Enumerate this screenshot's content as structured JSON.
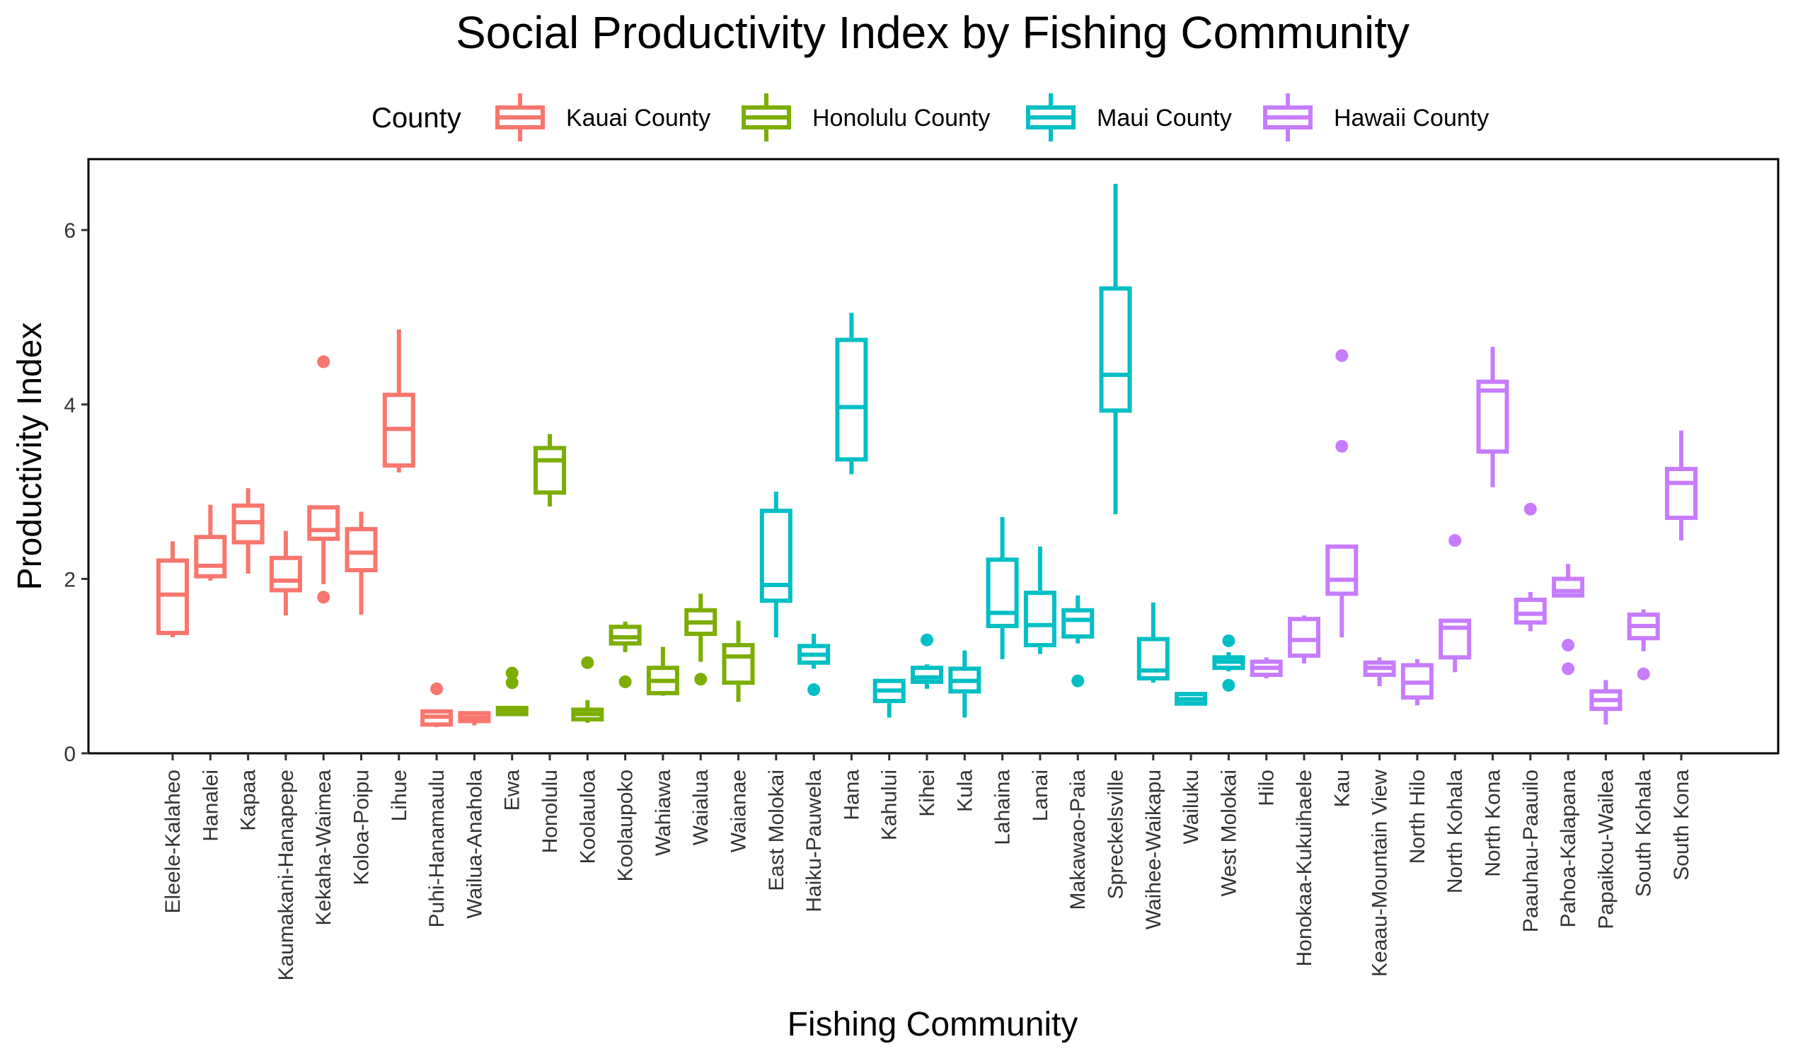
{
  "chart_data": {
    "type": "boxplot",
    "title": "Social Productivity Index by Fishing Community",
    "xlabel": "Fishing Community",
    "ylabel": "Productivity Index",
    "ylim": [
      0,
      6.8
    ],
    "yticks": [
      0,
      2,
      4,
      6
    ],
    "legend": {
      "title": "County",
      "placement": "top",
      "entries": [
        {
          "name": "Kauai County",
          "color": "#F8766D"
        },
        {
          "name": "Honolulu County",
          "color": "#7CAE00"
        },
        {
          "name": "Maui County",
          "color": "#00BFC4"
        },
        {
          "name": "Hawaii County",
          "color": "#C77CFF"
        }
      ]
    },
    "categories": [
      {
        "name": "Eleele-Kalaheo",
        "county": "Kauai County",
        "min": 1.33,
        "q1": 1.38,
        "median": 1.82,
        "q3": 2.21,
        "max": 2.43,
        "outliers": []
      },
      {
        "name": "Hanalei",
        "county": "Kauai County",
        "min": 1.98,
        "q1": 2.03,
        "median": 2.15,
        "q3": 2.48,
        "max": 2.85,
        "outliers": []
      },
      {
        "name": "Kapaa",
        "county": "Kauai County",
        "min": 2.06,
        "q1": 2.42,
        "median": 2.65,
        "q3": 2.84,
        "max": 3.04,
        "outliers": []
      },
      {
        "name": "Kaumakani-Hanapepe",
        "county": "Kauai County",
        "min": 1.58,
        "q1": 1.87,
        "median": 1.98,
        "q3": 2.24,
        "max": 2.55,
        "outliers": []
      },
      {
        "name": "Kekaha-Waimea",
        "county": "Kauai County",
        "min": 1.94,
        "q1": 2.46,
        "median": 2.56,
        "q3": 2.82,
        "max": 2.82,
        "outliers": [
          1.79,
          4.49
        ]
      },
      {
        "name": "Koloa-Poipu",
        "county": "Kauai County",
        "min": 1.59,
        "q1": 2.1,
        "median": 2.3,
        "q3": 2.57,
        "max": 2.77,
        "outliers": []
      },
      {
        "name": "Lihue",
        "county": "Kauai County",
        "min": 3.22,
        "q1": 3.3,
        "median": 3.72,
        "q3": 4.11,
        "max": 4.86,
        "outliers": []
      },
      {
        "name": "Puhi-Hanamaulu",
        "county": "Kauai County",
        "min": 0.3,
        "q1": 0.33,
        "median": 0.42,
        "q3": 0.48,
        "max": 0.5,
        "outliers": [
          0.74
        ]
      },
      {
        "name": "Wailua-Anahola",
        "county": "Kauai County",
        "min": 0.32,
        "q1": 0.37,
        "median": 0.41,
        "q3": 0.46,
        "max": 0.48,
        "outliers": []
      },
      {
        "name": "Ewa",
        "county": "Honolulu County",
        "min": 0.43,
        "q1": 0.45,
        "median": 0.5,
        "q3": 0.52,
        "max": 0.52,
        "outliers": [
          0.81,
          0.92
        ]
      },
      {
        "name": "Honolulu",
        "county": "Honolulu County",
        "min": 2.83,
        "q1": 2.99,
        "median": 3.36,
        "q3": 3.5,
        "max": 3.66,
        "outliers": []
      },
      {
        "name": "Koolauloa",
        "county": "Honolulu County",
        "min": 0.35,
        "q1": 0.39,
        "median": 0.45,
        "q3": 0.5,
        "max": 0.61,
        "outliers": [
          1.04
        ]
      },
      {
        "name": "Koolaupoko",
        "county": "Honolulu County",
        "min": 1.16,
        "q1": 1.26,
        "median": 1.33,
        "q3": 1.45,
        "max": 1.51,
        "outliers": [
          0.82
        ]
      },
      {
        "name": "Wahiawa",
        "county": "Honolulu County",
        "min": 0.66,
        "q1": 0.69,
        "median": 0.83,
        "q3": 0.98,
        "max": 1.22,
        "outliers": []
      },
      {
        "name": "Waialua",
        "county": "Honolulu County",
        "min": 1.05,
        "q1": 1.37,
        "median": 1.5,
        "q3": 1.64,
        "max": 1.83,
        "outliers": [
          0.85
        ]
      },
      {
        "name": "Waianae",
        "county": "Honolulu County",
        "min": 0.59,
        "q1": 0.81,
        "median": 1.11,
        "q3": 1.24,
        "max": 1.52,
        "outliers": []
      },
      {
        "name": "East Molokai",
        "county": "Maui County",
        "min": 1.33,
        "q1": 1.75,
        "median": 1.93,
        "q3": 2.78,
        "max": 3.0,
        "outliers": []
      },
      {
        "name": "Haiku-Pauwela",
        "county": "Maui County",
        "min": 0.97,
        "q1": 1.04,
        "median": 1.13,
        "q3": 1.23,
        "max": 1.37,
        "outliers": [
          0.73
        ]
      },
      {
        "name": "Hana",
        "county": "Maui County",
        "min": 3.2,
        "q1": 3.37,
        "median": 3.97,
        "q3": 4.74,
        "max": 5.05,
        "outliers": []
      },
      {
        "name": "Kahului",
        "county": "Maui County",
        "min": 0.41,
        "q1": 0.6,
        "median": 0.72,
        "q3": 0.83,
        "max": 0.85,
        "outliers": []
      },
      {
        "name": "Kihei",
        "county": "Maui County",
        "min": 0.74,
        "q1": 0.82,
        "median": 0.87,
        "q3": 0.98,
        "max": 1.02,
        "outliers": [
          1.3
        ]
      },
      {
        "name": "Kula",
        "county": "Maui County",
        "min": 0.41,
        "q1": 0.71,
        "median": 0.83,
        "q3": 0.97,
        "max": 1.18,
        "outliers": []
      },
      {
        "name": "Lahaina",
        "county": "Maui County",
        "min": 1.08,
        "q1": 1.46,
        "median": 1.61,
        "q3": 2.22,
        "max": 2.71,
        "outliers": []
      },
      {
        "name": "Lanai",
        "county": "Maui County",
        "min": 1.14,
        "q1": 1.24,
        "median": 1.47,
        "q3": 1.84,
        "max": 2.37,
        "outliers": []
      },
      {
        "name": "Makawao-Paia",
        "county": "Maui County",
        "min": 1.26,
        "q1": 1.34,
        "median": 1.53,
        "q3": 1.64,
        "max": 1.81,
        "outliers": [
          0.83
        ]
      },
      {
        "name": "Spreckelsville",
        "county": "Maui County",
        "min": 2.74,
        "q1": 3.93,
        "median": 4.34,
        "q3": 5.33,
        "max": 6.53,
        "outliers": []
      },
      {
        "name": "Waihee-Waikapu",
        "county": "Maui County",
        "min": 0.81,
        "q1": 0.86,
        "median": 0.95,
        "q3": 1.31,
        "max": 1.73,
        "outliers": []
      },
      {
        "name": "Wailuku",
        "county": "Maui County",
        "min": 0.56,
        "q1": 0.57,
        "median": 0.62,
        "q3": 0.68,
        "max": 0.7,
        "outliers": []
      },
      {
        "name": "West Molokai",
        "county": "Maui County",
        "min": 0.94,
        "q1": 0.98,
        "median": 1.05,
        "q3": 1.1,
        "max": 1.16,
        "outliers": [
          0.78,
          1.29
        ]
      },
      {
        "name": "Hilo",
        "county": "Hawaii County",
        "min": 0.86,
        "q1": 0.9,
        "median": 0.98,
        "q3": 1.05,
        "max": 1.1,
        "outliers": []
      },
      {
        "name": "Honokaa-Kukuihaele",
        "county": "Hawaii County",
        "min": 1.03,
        "q1": 1.12,
        "median": 1.3,
        "q3": 1.54,
        "max": 1.58,
        "outliers": []
      },
      {
        "name": "Kau",
        "county": "Hawaii County",
        "min": 1.33,
        "q1": 1.83,
        "median": 1.99,
        "q3": 2.37,
        "max": 2.37,
        "outliers": [
          3.52,
          4.56
        ]
      },
      {
        "name": "Keaau-Mountain View",
        "county": "Hawaii County",
        "min": 0.77,
        "q1": 0.9,
        "median": 0.98,
        "q3": 1.04,
        "max": 1.1,
        "outliers": []
      },
      {
        "name": "North Hilo",
        "county": "Hawaii County",
        "min": 0.55,
        "q1": 0.64,
        "median": 0.81,
        "q3": 1.01,
        "max": 1.08,
        "outliers": []
      },
      {
        "name": "North Kohala",
        "county": "Hawaii County",
        "min": 0.93,
        "q1": 1.1,
        "median": 1.44,
        "q3": 1.52,
        "max": 1.52,
        "outliers": [
          2.44
        ]
      },
      {
        "name": "North Kona",
        "county": "Hawaii County",
        "min": 3.05,
        "q1": 3.46,
        "median": 4.16,
        "q3": 4.26,
        "max": 4.66,
        "outliers": []
      },
      {
        "name": "Paauhau-Paauilo",
        "county": "Hawaii County",
        "min": 1.4,
        "q1": 1.5,
        "median": 1.6,
        "q3": 1.76,
        "max": 1.85,
        "outliers": [
          2.8
        ]
      },
      {
        "name": "Pahoa-Kalapana",
        "county": "Hawaii County",
        "min": 1.8,
        "q1": 1.81,
        "median": 1.86,
        "q3": 2.0,
        "max": 2.17,
        "outliers": [
          1.24,
          0.97
        ]
      },
      {
        "name": "Papaikou-Wailea",
        "county": "Hawaii County",
        "min": 0.33,
        "q1": 0.51,
        "median": 0.61,
        "q3": 0.71,
        "max": 0.84,
        "outliers": []
      },
      {
        "name": "South Kohala",
        "county": "Hawaii County",
        "min": 1.17,
        "q1": 1.32,
        "median": 1.46,
        "q3": 1.59,
        "max": 1.65,
        "outliers": [
          0.91
        ]
      },
      {
        "name": "South Kona",
        "county": "Hawaii County",
        "min": 2.44,
        "q1": 2.7,
        "median": 3.1,
        "q3": 3.26,
        "max": 3.7,
        "outliers": []
      }
    ]
  }
}
